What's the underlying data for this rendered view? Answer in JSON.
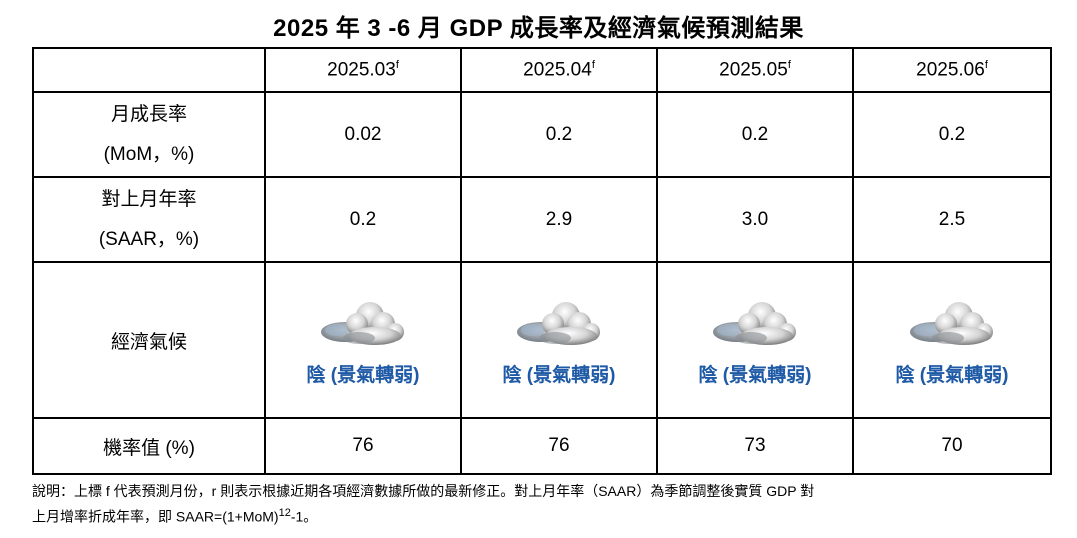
{
  "title": "2025 年 3 -6 月  GDP  成長率及經濟氣候預測結果",
  "columns": [
    {
      "label": "2025.03",
      "sup": "f"
    },
    {
      "label": "2025.04",
      "sup": "f"
    },
    {
      "label": "2025.05",
      "sup": "f"
    },
    {
      "label": "2025.06",
      "sup": "f"
    }
  ],
  "rows": {
    "mom": {
      "label_line1": "月成長率",
      "label_line2": "(MoM，%)",
      "values": [
        "0.02",
        "0.2",
        "0.2",
        "0.2"
      ]
    },
    "saar": {
      "label_line1": "對上月年率",
      "label_line2": "(SAAR，%)",
      "values": [
        "0.2",
        "2.9",
        "3.0",
        "2.5"
      ]
    },
    "climate": {
      "label": "經濟氣候",
      "icon": "cloud-icon",
      "values": [
        "陰 (景氣轉弱)",
        "陰 (景氣轉弱)",
        "陰 (景氣轉弱)",
        "陰 (景氣轉弱)"
      ]
    },
    "prob": {
      "label": "機率值  (%)",
      "values": [
        "76",
        "76",
        "73",
        "70"
      ]
    }
  },
  "colors": {
    "climate_text": "#1f5aa6"
  },
  "note": {
    "line1": "說明：上標  f  代表預測月份，r  則表示根據近期各項經濟數據所做的最新修正。對上月年率（SAAR）為季節調整後實質  GDP  對",
    "line2_pre": "上月增率折成年率，即  SAAR=(1+MoM)",
    "line2_sup": "12",
    "line2_post": "-1。"
  }
}
